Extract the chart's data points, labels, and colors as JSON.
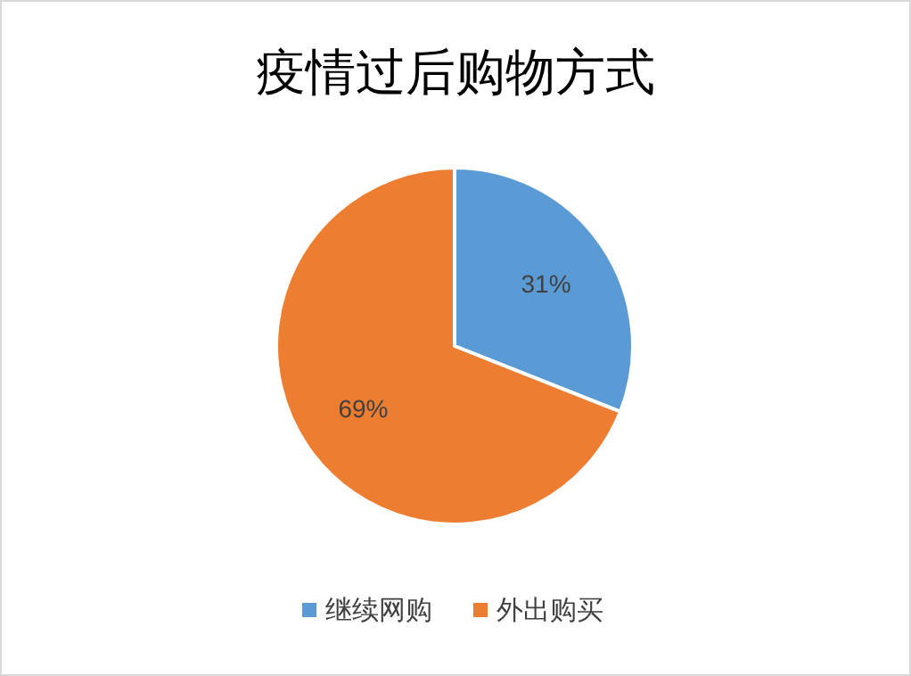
{
  "chart_data": {
    "type": "pie",
    "title": "疫情过后购物方式",
    "categories": [
      "继续网购",
      "外出购买"
    ],
    "values": [
      31,
      69
    ],
    "colors": [
      "#5b9bd5",
      "#ed7d31"
    ],
    "value_labels": [
      "31%",
      "69%"
    ],
    "legend": "bottom"
  }
}
